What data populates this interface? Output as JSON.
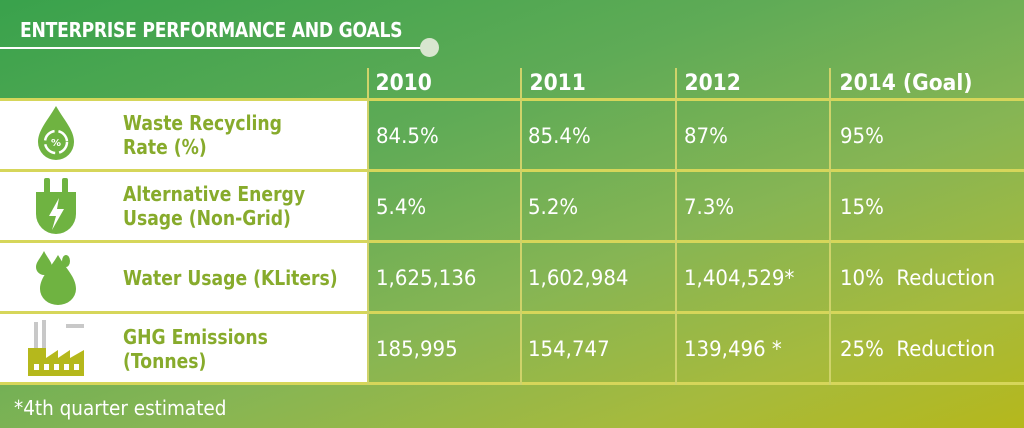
{
  "title": "ENTERPRISE PERFORMANCE AND GOALS",
  "columns": [
    "2010",
    "2011",
    "2012",
    "2014 (Goal)"
  ],
  "rows": [
    {
      "icon": "recycle-drop-icon",
      "label": "Waste Recycling\nRate (%)",
      "values": [
        "84.5%",
        "85.4%",
        "87%",
        "95%"
      ]
    },
    {
      "icon": "energy-plug-icon",
      "label": "Alternative Energy\nUsage (Non-Grid)",
      "values": [
        "5.4%",
        "5.2%",
        "7.3%",
        "15%"
      ]
    },
    {
      "icon": "water-drops-icon",
      "label": "Water Usage (KLiters)",
      "values": [
        "1,625,136",
        "1,602,984",
        "1,404,529*",
        "10%  Reduction"
      ]
    },
    {
      "icon": "factory-icon",
      "label": "GHG Emissions\n(Tonnes)",
      "values": [
        "185,995",
        "154,747",
        "139,496 *",
        "25%  Reduction"
      ]
    }
  ],
  "footnote": "*4th quarter estimated",
  "colors": {
    "label_text": "#87ab2c",
    "icon_green": "#6fb341",
    "grid_lines": "#d6d65a"
  }
}
